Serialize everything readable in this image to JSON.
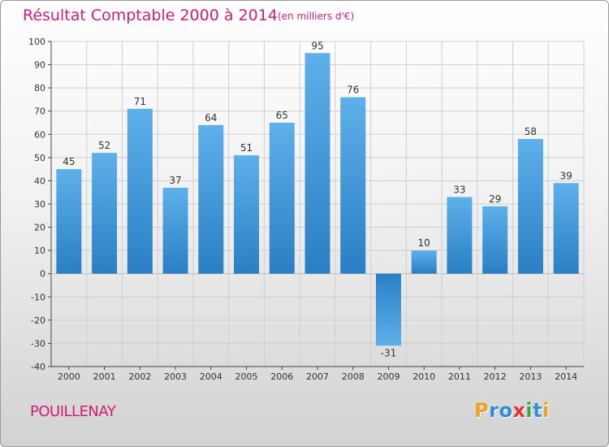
{
  "chart_data": {
    "type": "bar",
    "title": "Résultat Comptable 2000 à 2014",
    "unit": "(en milliers d'€)",
    "categories": [
      "2000",
      "2001",
      "2002",
      "2003",
      "2004",
      "2005",
      "2006",
      "2007",
      "2008",
      "2009",
      "2010",
      "2011",
      "2012",
      "2013",
      "2014"
    ],
    "values": [
      45,
      52,
      71,
      37,
      64,
      51,
      65,
      95,
      76,
      -31,
      10,
      33,
      29,
      58,
      39
    ],
    "ylim": [
      -40,
      100
    ],
    "yticks": [
      100,
      90,
      80,
      70,
      60,
      50,
      40,
      30,
      20,
      10,
      0,
      -10,
      -20,
      -30,
      -40
    ],
    "xlabel": "",
    "ylabel": "",
    "grid": true,
    "bar_color": "#4a9fde"
  },
  "footer": {
    "commune": "POUILLENAY",
    "brand_letters": [
      "P",
      "r",
      "o",
      "x",
      "i",
      "t",
      "i"
    ],
    "brand_colors": [
      "#f0a020",
      "#2e8ed8",
      "#2e8ed8",
      "#e8303a",
      "#3aa842",
      "#2e8ed8",
      "#f0a020"
    ]
  }
}
